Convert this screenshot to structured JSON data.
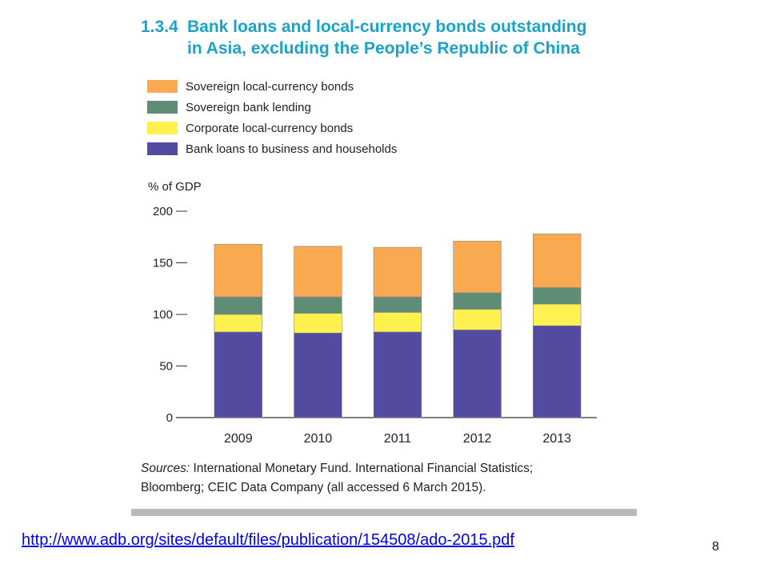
{
  "figure": {
    "number": "1.3.4",
    "title_line1": "Bank loans and local-currency bonds outstanding",
    "title_line2": "in Asia, excluding the People’s Republic of China"
  },
  "chart_data": {
    "type": "bar",
    "stacked": true,
    "title": "Bank loans and local-currency bonds outstanding in Asia, excluding the People’s Republic of China",
    "ylabel": "% of GDP",
    "xlabel": "",
    "ylim": [
      0,
      200
    ],
    "yticks": [
      0,
      50,
      100,
      150,
      200
    ],
    "grid": false,
    "legend_position": "top-left",
    "categories": [
      "2009",
      "2010",
      "2011",
      "2012",
      "2013"
    ],
    "series": [
      {
        "name": "Bank loans to business and households",
        "color": "#524ba0",
        "values": [
          83,
          82,
          83,
          85,
          89
        ]
      },
      {
        "name": "Corporate local-currency bonds",
        "color": "#fff250",
        "values": [
          17,
          19,
          19,
          20,
          21
        ]
      },
      {
        "name": "Sovereign bank lending",
        "color": "#5f8c74",
        "values": [
          17,
          16,
          15,
          16,
          16
        ]
      },
      {
        "name": "Sovereign local-currency bonds",
        "color": "#f9a950",
        "values": [
          51,
          49,
          48,
          50,
          52
        ]
      }
    ]
  },
  "sources": {
    "lead": "Sources:",
    "line1": " International Monetary Fund. International Financial Statistics;",
    "line2": "Bloomberg; CEIC Data Company (all accessed 6 March 2015)."
  },
  "link": {
    "url": "http://www.adb.org/sites/default/files/publication/154508/ado-2015.pdf"
  },
  "page_number": "8"
}
